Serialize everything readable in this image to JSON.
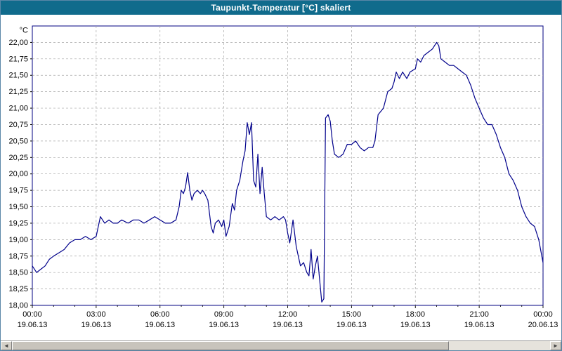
{
  "window": {
    "title": "Taupunkt-Temperatur [°C] skaliert"
  },
  "colors": {
    "titlebar_bg": "#106b8c",
    "titlebar_text": "#ffffff",
    "plot_bg": "#ffffff",
    "axis": "#000080",
    "grid": "#a6a6a6",
    "line": "#00008b",
    "tick": "#000000"
  },
  "scrollbar": {
    "left_arrow": "◄",
    "right_arrow": "►"
  },
  "chart_data": {
    "type": "line",
    "title": "Taupunkt-Temperatur [°C] skaliert",
    "xlabel": "",
    "ylabel": "°C",
    "ylim": [
      18.0,
      22.0
    ],
    "ytick_step": 0.25,
    "grid": true,
    "legend_position": "none",
    "ytick_labels": [
      "22,00",
      "21,75",
      "21,50",
      "21,25",
      "21,00",
      "20,75",
      "20,50",
      "20,25",
      "20,00",
      "19,75",
      "19,50",
      "19,25",
      "19,00",
      "18,75",
      "18,50",
      "18,25",
      "18,00"
    ],
    "xticks": [
      {
        "hour": 0,
        "time": "00:00",
        "date": "19.06.13"
      },
      {
        "hour": 3,
        "time": "03:00",
        "date": "19.06.13"
      },
      {
        "hour": 6,
        "time": "06:00",
        "date": "19.06.13"
      },
      {
        "hour": 9,
        "time": "09:00",
        "date": "19.06.13"
      },
      {
        "hour": 12,
        "time": "12:00",
        "date": "19.06.13"
      },
      {
        "hour": 15,
        "time": "15:00",
        "date": "19.06.13"
      },
      {
        "hour": 18,
        "time": "18:00",
        "date": "19.06.13"
      },
      {
        "hour": 21,
        "time": "21:00",
        "date": "19.06.13"
      },
      {
        "hour": 24,
        "time": "00:00",
        "date": "20.06.13"
      }
    ],
    "series": [
      {
        "name": "Taupunkt-Temperatur",
        "points": [
          [
            0.0,
            18.6
          ],
          [
            0.2,
            18.5
          ],
          [
            0.4,
            18.55
          ],
          [
            0.6,
            18.6
          ],
          [
            0.8,
            18.7
          ],
          [
            1.0,
            18.75
          ],
          [
            1.25,
            18.8
          ],
          [
            1.5,
            18.85
          ],
          [
            1.75,
            18.95
          ],
          [
            2.0,
            19.0
          ],
          [
            2.25,
            19.0
          ],
          [
            2.5,
            19.05
          ],
          [
            2.75,
            19.0
          ],
          [
            3.0,
            19.05
          ],
          [
            3.2,
            19.35
          ],
          [
            3.4,
            19.25
          ],
          [
            3.6,
            19.3
          ],
          [
            3.8,
            19.25
          ],
          [
            4.0,
            19.25
          ],
          [
            4.2,
            19.3
          ],
          [
            4.5,
            19.25
          ],
          [
            4.75,
            19.3
          ],
          [
            5.0,
            19.3
          ],
          [
            5.25,
            19.25
          ],
          [
            5.5,
            19.3
          ],
          [
            5.75,
            19.35
          ],
          [
            6.0,
            19.3
          ],
          [
            6.25,
            19.25
          ],
          [
            6.5,
            19.25
          ],
          [
            6.75,
            19.3
          ],
          [
            6.9,
            19.5
          ],
          [
            7.0,
            19.75
          ],
          [
            7.1,
            19.7
          ],
          [
            7.2,
            19.8
          ],
          [
            7.3,
            20.02
          ],
          [
            7.4,
            19.75
          ],
          [
            7.5,
            19.6
          ],
          [
            7.6,
            19.7
          ],
          [
            7.75,
            19.75
          ],
          [
            7.9,
            19.7
          ],
          [
            8.0,
            19.75
          ],
          [
            8.1,
            19.7
          ],
          [
            8.25,
            19.6
          ],
          [
            8.4,
            19.2
          ],
          [
            8.5,
            19.1
          ],
          [
            8.6,
            19.25
          ],
          [
            8.75,
            19.3
          ],
          [
            8.9,
            19.2
          ],
          [
            9.0,
            19.3
          ],
          [
            9.1,
            19.05
          ],
          [
            9.25,
            19.2
          ],
          [
            9.4,
            19.55
          ],
          [
            9.5,
            19.45
          ],
          [
            9.6,
            19.75
          ],
          [
            9.75,
            19.9
          ],
          [
            9.9,
            20.2
          ],
          [
            10.0,
            20.35
          ],
          [
            10.1,
            20.78
          ],
          [
            10.2,
            20.6
          ],
          [
            10.3,
            20.78
          ],
          [
            10.4,
            19.9
          ],
          [
            10.5,
            19.8
          ],
          [
            10.6,
            20.3
          ],
          [
            10.7,
            19.7
          ],
          [
            10.8,
            20.1
          ],
          [
            10.9,
            19.7
          ],
          [
            11.0,
            19.35
          ],
          [
            11.2,
            19.3
          ],
          [
            11.4,
            19.35
          ],
          [
            11.6,
            19.3
          ],
          [
            11.8,
            19.35
          ],
          [
            11.9,
            19.3
          ],
          [
            12.0,
            19.1
          ],
          [
            12.1,
            18.95
          ],
          [
            12.25,
            19.3
          ],
          [
            12.4,
            18.9
          ],
          [
            12.5,
            18.75
          ],
          [
            12.6,
            18.6
          ],
          [
            12.75,
            18.65
          ],
          [
            12.9,
            18.5
          ],
          [
            13.0,
            18.45
          ],
          [
            13.1,
            18.85
          ],
          [
            13.2,
            18.4
          ],
          [
            13.3,
            18.6
          ],
          [
            13.4,
            18.75
          ],
          [
            13.5,
            18.4
          ],
          [
            13.6,
            18.05
          ],
          [
            13.7,
            18.1
          ],
          [
            13.78,
            20.85
          ],
          [
            13.9,
            20.9
          ],
          [
            14.0,
            20.8
          ],
          [
            14.1,
            20.5
          ],
          [
            14.2,
            20.3
          ],
          [
            14.4,
            20.25
          ],
          [
            14.6,
            20.3
          ],
          [
            14.8,
            20.45
          ],
          [
            15.0,
            20.45
          ],
          [
            15.2,
            20.5
          ],
          [
            15.4,
            20.4
          ],
          [
            15.6,
            20.35
          ],
          [
            15.8,
            20.4
          ],
          [
            16.0,
            20.4
          ],
          [
            16.1,
            20.5
          ],
          [
            16.25,
            20.9
          ],
          [
            16.5,
            21.0
          ],
          [
            16.7,
            21.25
          ],
          [
            16.9,
            21.3
          ],
          [
            17.0,
            21.4
          ],
          [
            17.1,
            21.55
          ],
          [
            17.25,
            21.45
          ],
          [
            17.4,
            21.55
          ],
          [
            17.5,
            21.5
          ],
          [
            17.6,
            21.45
          ],
          [
            17.75,
            21.55
          ],
          [
            18.0,
            21.6
          ],
          [
            18.1,
            21.75
          ],
          [
            18.25,
            21.7
          ],
          [
            18.4,
            21.8
          ],
          [
            18.6,
            21.85
          ],
          [
            18.8,
            21.9
          ],
          [
            19.0,
            22.0
          ],
          [
            19.1,
            21.95
          ],
          [
            19.2,
            21.75
          ],
          [
            19.4,
            21.7
          ],
          [
            19.6,
            21.65
          ],
          [
            19.8,
            21.65
          ],
          [
            20.0,
            21.6
          ],
          [
            20.2,
            21.55
          ],
          [
            20.4,
            21.5
          ],
          [
            20.6,
            21.35
          ],
          [
            20.8,
            21.15
          ],
          [
            21.0,
            21.0
          ],
          [
            21.2,
            20.85
          ],
          [
            21.4,
            20.75
          ],
          [
            21.6,
            20.75
          ],
          [
            21.8,
            20.6
          ],
          [
            22.0,
            20.4
          ],
          [
            22.2,
            20.25
          ],
          [
            22.4,
            20.0
          ],
          [
            22.6,
            19.9
          ],
          [
            22.8,
            19.75
          ],
          [
            23.0,
            19.5
          ],
          [
            23.2,
            19.35
          ],
          [
            23.4,
            19.25
          ],
          [
            23.6,
            19.2
          ],
          [
            23.8,
            19.0
          ],
          [
            24.0,
            18.65
          ]
        ]
      }
    ]
  }
}
